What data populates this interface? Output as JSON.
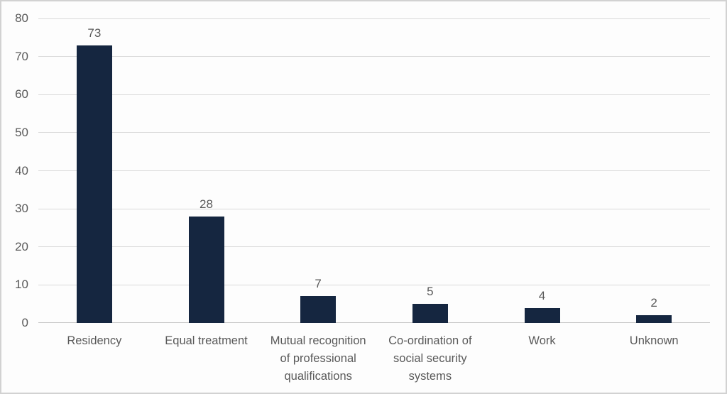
{
  "chart_data": {
    "type": "bar",
    "title": "",
    "xlabel": "",
    "ylabel": "",
    "categories": [
      "Residency",
      "Equal treatment",
      "Mutual recognition of professional qualifications",
      "Co-ordination of social security systems",
      "Work",
      "Unknown"
    ],
    "values": [
      73,
      28,
      7,
      5,
      4,
      2
    ],
    "data_labels": [
      "73",
      "28",
      "7",
      "5",
      "4",
      "2"
    ],
    "ylim": [
      0,
      80
    ],
    "ytick_step": 10,
    "ytick_labels": [
      "0",
      "10",
      "20",
      "30",
      "40",
      "50",
      "60",
      "70",
      "80"
    ],
    "grid": true,
    "legend": false
  },
  "colors": {
    "bar": "#152640",
    "text": "#595959",
    "gridline": "#dadada",
    "axis_line": "#c3c3c3",
    "background": "#fdfdfd",
    "frame_border": "#d2d2d2"
  }
}
